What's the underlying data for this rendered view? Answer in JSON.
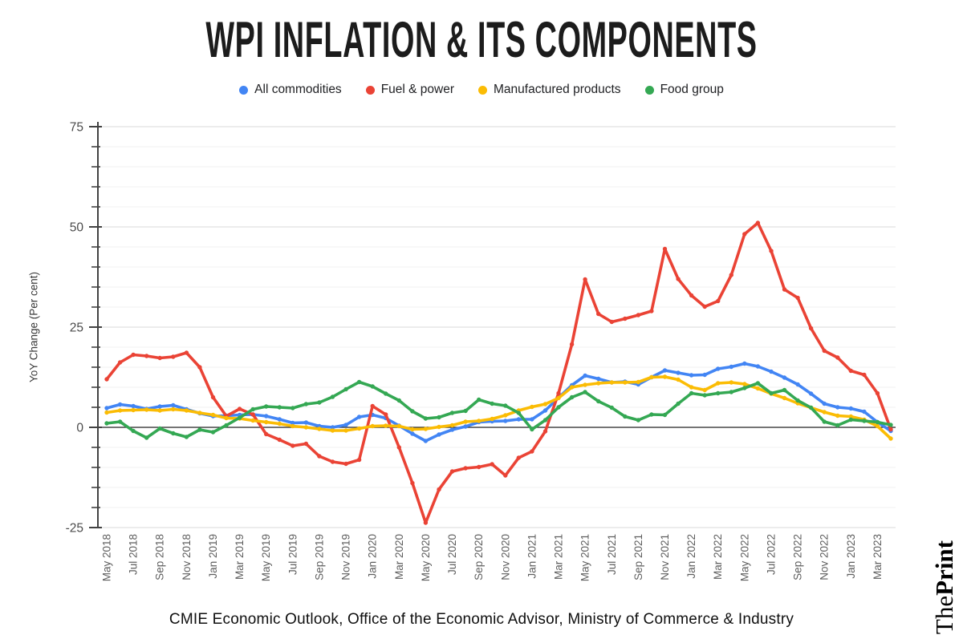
{
  "title": "WPI INFLATION & ITS COMPONENTS",
  "source_caption": "CMIE Economic Outlook, Office of the Economic Advisor, Ministry of Commerce & Industry",
  "branding": {
    "the": "The",
    "print": "Print"
  },
  "colors": {
    "all_commodities": "#4285F4",
    "fuel_power": "#EA4335",
    "manufactured": "#FBBC04",
    "food": "#34A853",
    "major_grid": "#dadada",
    "minor_grid": "#f2f2f2",
    "zero_line": "#212121",
    "axis": "#424242",
    "tick_text": "#5e5e5e"
  },
  "chart_data": {
    "type": "line",
    "title": "WPI INFLATION & ITS COMPONENTS",
    "xlabel": "",
    "ylabel": "YoY Change (Per cent)",
    "ylim": [
      -25,
      75
    ],
    "yticks": [
      75,
      50,
      25,
      0,
      -25
    ],
    "minor_tick_step": 5,
    "x_tick_every": 2,
    "grid": true,
    "legend_position": "top",
    "categories": [
      "May 2018",
      "Jun 2018",
      "Jul 2018",
      "Aug 2018",
      "Sep 2018",
      "Oct 2018",
      "Nov 2018",
      "Dec 2018",
      "Jan 2019",
      "Feb 2019",
      "Mar 2019",
      "Apr 2019",
      "May 2019",
      "Jun 2019",
      "Jul 2019",
      "Aug 2019",
      "Sep 2019",
      "Oct 2019",
      "Nov 2019",
      "Dec 2019",
      "Jan 2020",
      "Feb 2020",
      "Mar 2020",
      "Apr 2020",
      "May 2020",
      "Jun 2020",
      "Jul 2020",
      "Aug 2020",
      "Sep 2020",
      "Oct 2020",
      "Nov 2020",
      "Dec 2020",
      "Jan 2021",
      "Feb 2021",
      "Mar 2021",
      "Apr 2021",
      "May 2021",
      "Jun 2021",
      "Jul 2021",
      "Aug 2021",
      "Sep 2021",
      "Oct 2021",
      "Nov 2021",
      "Dec 2021",
      "Jan 2022",
      "Feb 2022",
      "Mar 2022",
      "Apr 2022",
      "May 2022",
      "Jun 2022",
      "Jul 2022",
      "Aug 2022",
      "Sep 2022",
      "Oct 2022",
      "Nov 2022",
      "Dec 2022",
      "Jan 2023",
      "Feb 2023",
      "Mar 2023",
      "Apr 2023"
    ],
    "series": [
      {
        "name": "All commodities",
        "color": "#4285F4",
        "values": [
          4.8,
          5.7,
          5.3,
          4.6,
          5.2,
          5.5,
          4.5,
          3.5,
          2.8,
          2.9,
          3.1,
          3.2,
          2.8,
          2.0,
          1.1,
          1.2,
          0.3,
          0.0,
          0.6,
          2.6,
          3.1,
          2.3,
          0.4,
          -1.6,
          -3.4,
          -1.8,
          -0.6,
          0.2,
          1.3,
          1.5,
          1.6,
          2.0,
          2.0,
          4.2,
          7.4,
          10.5,
          12.9,
          12.1,
          11.2,
          11.4,
          10.7,
          12.5,
          14.2,
          13.6,
          13.0,
          13.1,
          14.6,
          15.1,
          15.9,
          15.2,
          13.9,
          12.4,
          10.7,
          8.4,
          5.9,
          5.0,
          4.7,
          3.9,
          1.3,
          -0.9
        ]
      },
      {
        "name": "Fuel & power",
        "color": "#EA4335",
        "values": [
          12.0,
          16.2,
          18.1,
          17.8,
          17.3,
          17.6,
          18.6,
          15.0,
          7.5,
          2.8,
          4.6,
          3.2,
          -1.7,
          -3.1,
          -4.6,
          -4.1,
          -7.2,
          -8.6,
          -9.1,
          -8.1,
          5.3,
          3.2,
          -5.0,
          -13.9,
          -23.8,
          -15.5,
          -11.0,
          -10.2,
          -9.9,
          -9.2,
          -12.0,
          -7.6,
          -6.0,
          -1.0,
          8.5,
          20.7,
          36.9,
          28.3,
          26.3,
          27.1,
          28.0,
          29.0,
          44.5,
          37.0,
          32.9,
          30.1,
          31.5,
          38.0,
          48.2,
          51.0,
          44.0,
          34.4,
          32.3,
          24.7,
          19.1,
          17.4,
          14.1,
          13.1,
          8.5,
          -0.5
        ]
      },
      {
        "name": "Manufactured products",
        "color": "#FBBC04",
        "values": [
          3.7,
          4.2,
          4.3,
          4.4,
          4.2,
          4.5,
          4.2,
          3.6,
          3.1,
          2.3,
          2.2,
          1.7,
          1.3,
          0.9,
          0.3,
          0.0,
          -0.4,
          -0.8,
          -0.8,
          -0.3,
          0.3,
          0.4,
          0.3,
          -0.5,
          -0.4,
          0.1,
          0.5,
          1.4,
          1.6,
          2.1,
          3.0,
          4.2,
          5.1,
          5.8,
          7.3,
          10.0,
          10.6,
          11.0,
          11.2,
          11.2,
          11.3,
          12.5,
          12.6,
          11.9,
          10.0,
          9.3,
          11.0,
          11.2,
          10.8,
          9.7,
          8.4,
          7.3,
          6.0,
          4.9,
          3.8,
          2.9,
          2.7,
          1.9,
          0.3,
          -2.8
        ]
      },
      {
        "name": "Food group",
        "color": "#34A853",
        "values": [
          1.0,
          1.4,
          -0.9,
          -2.6,
          -0.3,
          -1.5,
          -2.4,
          -0.6,
          -1.2,
          0.5,
          2.4,
          4.5,
          5.2,
          5.0,
          4.8,
          5.8,
          6.2,
          7.6,
          9.5,
          11.3,
          10.2,
          8.4,
          6.7,
          4.0,
          2.2,
          2.5,
          3.6,
          4.1,
          6.9,
          5.9,
          5.4,
          3.6,
          -0.5,
          1.8,
          5.0,
          7.5,
          8.8,
          6.5,
          4.9,
          2.7,
          1.8,
          3.2,
          3.1,
          5.9,
          8.5,
          8.0,
          8.5,
          8.8,
          9.8,
          11.0,
          8.5,
          9.3,
          6.7,
          4.9,
          1.4,
          0.5,
          1.9,
          1.6,
          1.3,
          0.6
        ]
      }
    ]
  }
}
